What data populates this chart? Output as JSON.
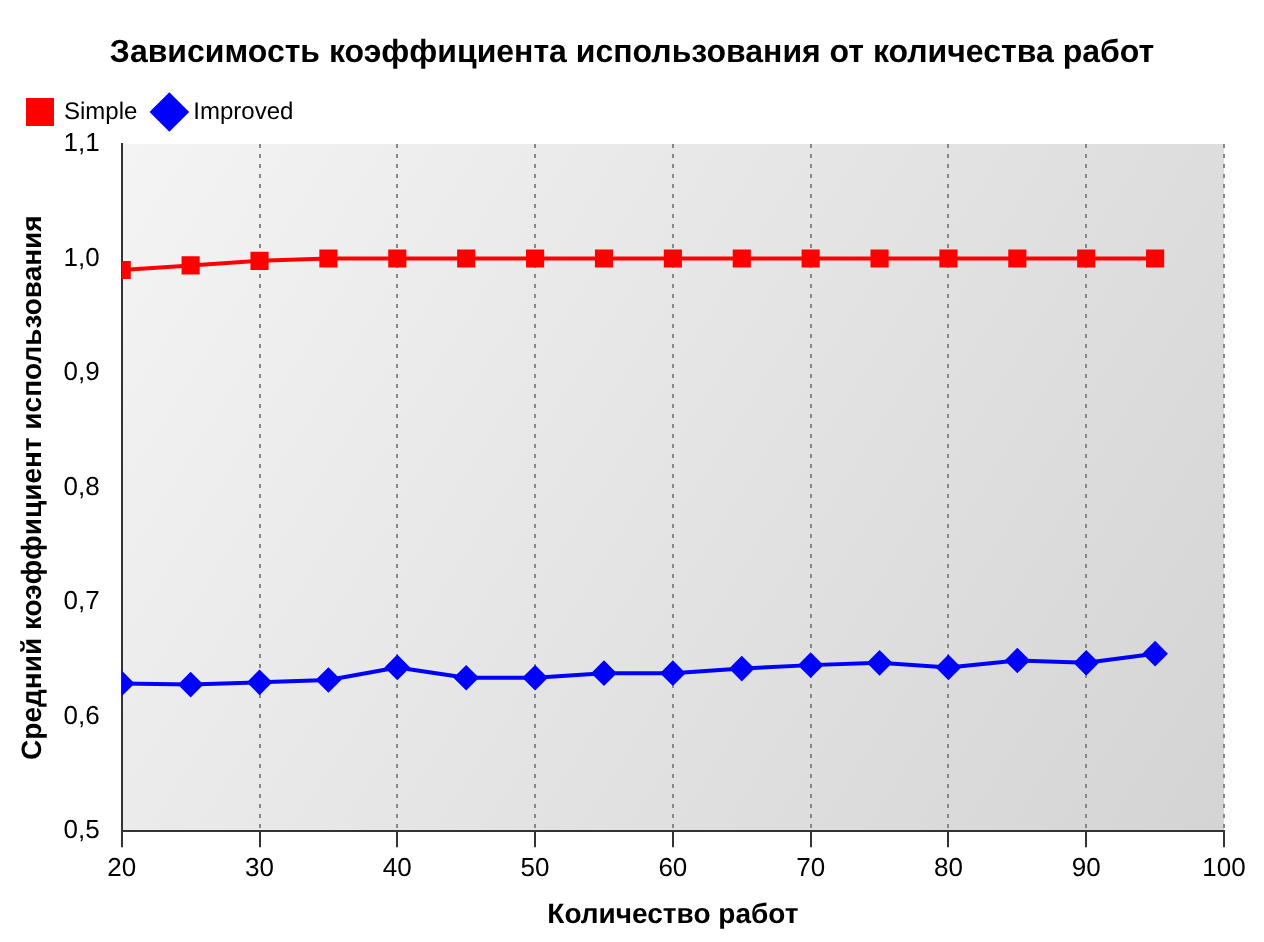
{
  "chart_data": {
    "type": "line",
    "title": "Зависимость коэффициента использования от количества работ",
    "xlabel": "Количество работ",
    "ylabel": "Средний коэффициент использования",
    "x": [
      20,
      25,
      30,
      35,
      40,
      45,
      50,
      55,
      60,
      65,
      70,
      75,
      80,
      85,
      90,
      95
    ],
    "series": [
      {
        "name": "Simple",
        "color": "#ff0000",
        "marker": "square",
        "values": [
          0.99,
          0.994,
          0.998,
          1.0,
          1.0,
          1.0,
          1.0,
          1.0,
          1.0,
          1.0,
          1.0,
          1.0,
          1.0,
          1.0,
          1.0,
          1.0
        ]
      },
      {
        "name": "Improved",
        "color": "#0000ff",
        "marker": "diamond",
        "values": [
          0.629,
          0.628,
          0.63,
          0.632,
          0.643,
          0.634,
          0.634,
          0.638,
          0.638,
          0.642,
          0.645,
          0.647,
          0.643,
          0.649,
          0.647,
          0.655
        ]
      }
    ],
    "xlim": [
      20,
      100
    ],
    "xticks": [
      20,
      30,
      40,
      50,
      60,
      70,
      80,
      90,
      100
    ],
    "ylim": [
      0.5,
      1.1
    ],
    "yticks": [
      {
        "value": 0.5,
        "label": "0,5"
      },
      {
        "value": 0.6,
        "label": "0,6"
      },
      {
        "value": 0.7,
        "label": "0,7"
      },
      {
        "value": 0.8,
        "label": "0,8"
      },
      {
        "value": 0.9,
        "label": "0,9"
      },
      {
        "value": 1.0,
        "label": "1,0"
      },
      {
        "value": 1.1,
        "label": "1,1"
      }
    ],
    "grid": "x",
    "legend": "top left",
    "line_style": "solid"
  }
}
